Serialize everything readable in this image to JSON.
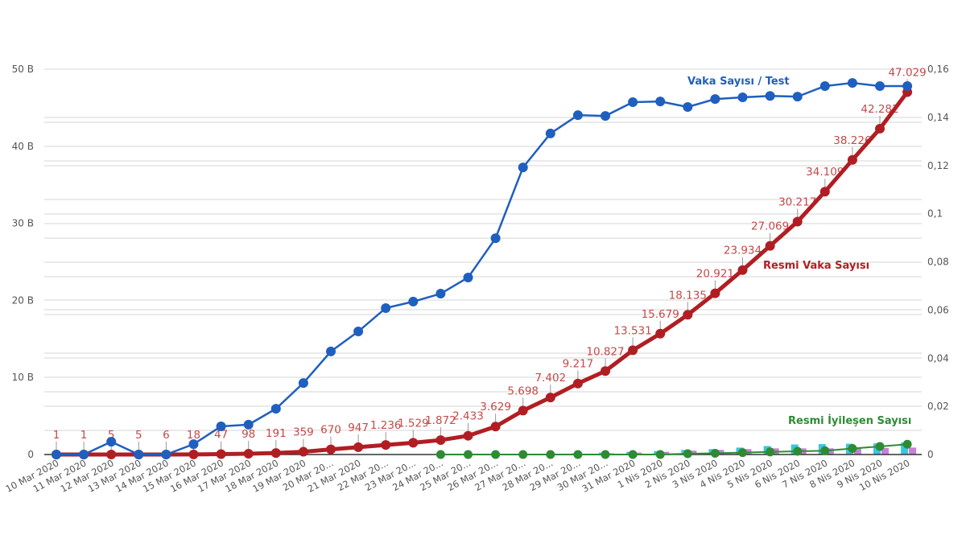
{
  "chart_data": {
    "type": "line",
    "title": "",
    "xlabel": "",
    "ylabel_left": "",
    "ylabel_right": "",
    "legend_position": "inline",
    "grid": true,
    "categories": [
      "10 Mar 2020",
      "11 Mar 2020",
      "12 Mar 2020",
      "13 Mar 2020",
      "14 Mar 2020",
      "15 Mar 2020",
      "16 Mar 2020",
      "17 Mar 2020",
      "18 Mar 2020",
      "19 Mar 2020",
      "20 Mar 20...",
      "21 Mar 2020",
      "22 Mar 20...",
      "23 Mar 20...",
      "24 Mar 20...",
      "25 Mar 20...",
      "26 Mar 20...",
      "27 Mar 20...",
      "28 Mar 20...",
      "29 Mar 20...",
      "30 Mar 20...",
      "31 Mar 2020",
      "1 Nis 2020",
      "2 Nis 2020",
      "3 Nis 2020",
      "4 Nis 2020",
      "5 Nis 2020",
      "6 Nis 2020",
      "7 Nis 2020",
      "8 Nis 2020",
      "9 Nis 2020",
      "10 Nis 2020"
    ],
    "y_left": {
      "ticks": [
        "0",
        "10 B",
        "20 B",
        "30 B",
        "40 B",
        "50 B"
      ],
      "range": [
        0,
        50000
      ]
    },
    "y_right": {
      "ticks": [
        "0",
        "0,02",
        "0,04",
        "0,06",
        "0,08",
        "0,1",
        "0,12",
        "0,14",
        "0,16"
      ],
      "range": [
        0,
        0.16
      ]
    },
    "series": [
      {
        "name": "Resmi Vaka Sayısı",
        "axis": "left",
        "color": "#b01e23",
        "values": [
          1,
          1,
          5,
          5,
          6,
          18,
          47,
          98,
          191,
          359,
          670,
          947,
          1236,
          1529,
          1872,
          2433,
          3629,
          5698,
          7402,
          9217,
          10827,
          13531,
          15679,
          18135,
          20921,
          23934,
          27069,
          30217,
          34109,
          38226,
          42282,
          47029
        ],
        "data_labels": [
          "1",
          "1",
          "5",
          "5",
          "6",
          "18",
          "47",
          "98",
          "191",
          "359",
          "670",
          "947",
          "1.236",
          "1.529",
          "1.872",
          "2.433",
          "3.629",
          "5.698",
          "7.402",
          "9.217",
          "10.827",
          "13.531",
          "15.679",
          "18.135",
          "20.921",
          "23.934",
          "27.069",
          "30.217",
          "34.109",
          "38.226",
          "42.282",
          "47.029"
        ]
      },
      {
        "name": "Vaka Sayısı / Test",
        "axis": "right",
        "color": "#1f5fbf",
        "values": [
          0.0,
          0.0,
          0.0053,
          0.0,
          0.0,
          0.0043,
          0.0117,
          0.0124,
          0.019,
          0.0297,
          0.0428,
          0.0511,
          0.0608,
          0.0635,
          0.0668,
          0.0735,
          0.0898,
          0.1192,
          0.1333,
          0.1409,
          0.1406,
          0.1463,
          0.1466,
          0.1443,
          0.1476,
          0.1483,
          0.1489,
          0.1486,
          0.153,
          0.1543,
          0.153,
          0.153
        ]
      },
      {
        "name": "Resmi İyileşen Sayısı",
        "axis": "left",
        "color": "#2e8b34",
        "start_index": 14,
        "values": [
          0,
          0,
          0,
          0,
          0,
          0,
          0,
          0,
          0,
          105,
          162,
          243,
          333,
          415,
          484,
          786,
          1042,
          1326
        ]
      },
      {
        "name": "bars-cyan",
        "axis": "left",
        "color": "#3ec4e0",
        "type": "bar",
        "start_index": 17,
        "values": [
          40,
          80,
          150,
          250,
          350,
          450,
          600,
          700,
          900,
          1100,
          1300,
          1350,
          1400,
          1450,
          1550
        ]
      },
      {
        "name": "bars-purple",
        "axis": "left",
        "color": "#c77fd9",
        "type": "bar",
        "start_index": 17,
        "values": [
          20,
          40,
          80,
          150,
          250,
          350,
          500,
          600,
          700,
          800,
          800,
          800,
          850,
          850,
          900
        ]
      }
    ]
  },
  "labels": {
    "vaka_test": "Vaka Sayısı / Test",
    "resmi_vaka": "Resmi Vaka Sayısı",
    "resmi_iyilesen": "Resmi İyileşen Sayısı"
  }
}
